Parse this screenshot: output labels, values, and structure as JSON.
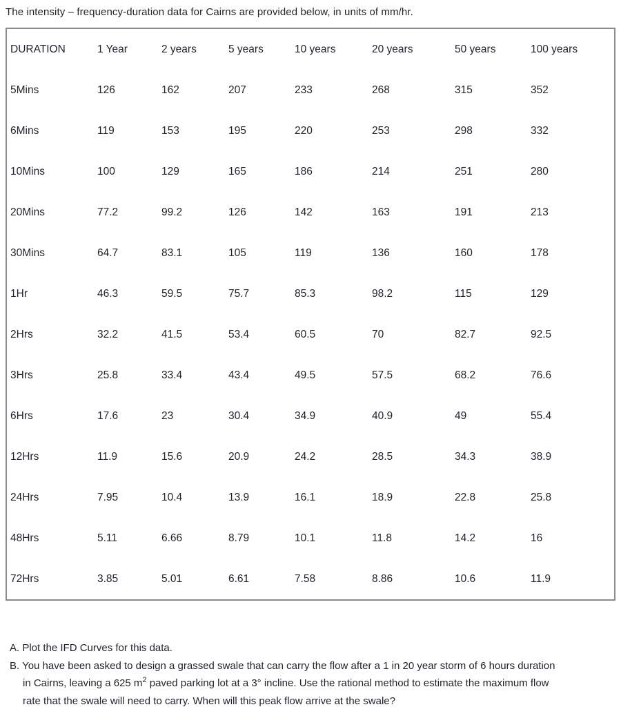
{
  "title": "The intensity – frequency-duration data for Cairns are provided below, in units of mm/hr.",
  "table": {
    "columns": [
      "DURATION",
      "1 Year",
      "2 years",
      "5 years",
      "10 years",
      "20 years",
      "50 years",
      "100 years"
    ],
    "rows": [
      [
        "5Mins",
        "126",
        "162",
        "207",
        "233",
        "268",
        "315",
        "352"
      ],
      [
        "6Mins",
        "119",
        "153",
        "195",
        "220",
        "253",
        "298",
        "332"
      ],
      [
        "10Mins",
        "100",
        "129",
        "165",
        "186",
        "214",
        "251",
        "280"
      ],
      [
        "20Mins",
        "77.2",
        "99.2",
        "126",
        "142",
        "163",
        "191",
        "213"
      ],
      [
        "30Mins",
        "64.7",
        "83.1",
        "105",
        "119",
        "136",
        "160",
        "178"
      ],
      [
        "1Hr",
        "46.3",
        "59.5",
        "75.7",
        "85.3",
        "98.2",
        "115",
        "129"
      ],
      [
        "2Hrs",
        "32.2",
        "41.5",
        "53.4",
        "60.5",
        "70",
        "82.7",
        "92.5"
      ],
      [
        "3Hrs",
        "25.8",
        "33.4",
        "43.4",
        "49.5",
        "57.5",
        "68.2",
        "76.6"
      ],
      [
        "6Hrs",
        "17.6",
        "23",
        "30.4",
        "34.9",
        "40.9",
        "49",
        "55.4"
      ],
      [
        "12Hrs",
        "11.9",
        "15.6",
        "20.9",
        "24.2",
        "28.5",
        "34.3",
        "38.9"
      ],
      [
        "24Hrs",
        "7.95",
        "10.4",
        "13.9",
        "16.1",
        "18.9",
        "22.8",
        "25.8"
      ],
      [
        "48Hrs",
        "5.11",
        "6.66",
        "8.79",
        "10.1",
        "11.8",
        "14.2",
        "16"
      ],
      [
        "72Hrs",
        "3.85",
        "5.01",
        "6.61",
        "7.58",
        "8.86",
        "10.6",
        "11.9"
      ]
    ]
  },
  "questions": {
    "a": "A. Plot the IFD Curves for this data.",
    "b_line1": "B. You have been asked to design a grassed swale that can carry the flow after a 1 in 20 year storm of 6 hours duration",
    "b_line2_pre": "in Cairns, leaving a 625 m",
    "b_line2_sup": "2",
    "b_line2_post": " paved parking lot at a 3° incline. Use the rational method to estimate the maximum flow",
    "b_line3": "rate that the swale will need to carry. When will this peak flow arrive at the swale?"
  },
  "colors": {
    "text": "#21242c",
    "table_border": "#8a8a8a",
    "background": "#ffffff"
  }
}
